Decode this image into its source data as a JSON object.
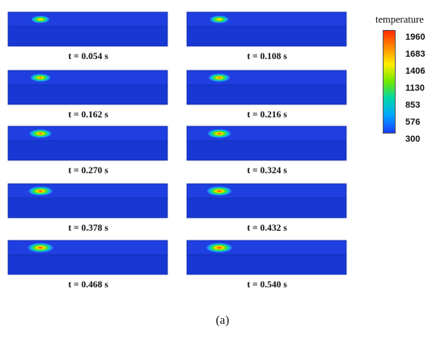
{
  "panels": [
    {
      "label": "t = 0.054 s",
      "spot_level": 0.15
    },
    {
      "label": "t = 0.108 s",
      "spot_level": 0.2
    },
    {
      "label": "t = 0.162 s",
      "spot_level": 0.35
    },
    {
      "label": "t = 0.216 s",
      "spot_level": 0.45
    },
    {
      "label": "t = 0.270 s",
      "spot_level": 0.55
    },
    {
      "label": "t = 0.324 s",
      "spot_level": 0.65
    },
    {
      "label": "t = 0.378 s",
      "spot_level": 0.72
    },
    {
      "label": "t = 0.432 s",
      "spot_level": 0.8
    },
    {
      "label": "t = 0.468 s",
      "spot_level": 0.85
    },
    {
      "label": "t = 0.540 s",
      "spot_level": 0.9
    }
  ],
  "legend": {
    "title": "temperature",
    "ticks": [
      "1960",
      "1683",
      "1406",
      "1130",
      "853",
      "576",
      "300"
    ]
  },
  "caption": "(a)",
  "colors": {
    "bar_top": "#1f3fe0",
    "bar_front": "#1838d4",
    "bar_side": "#1230b8",
    "hot": "#ff2a00",
    "cold": "#1a3cff"
  }
}
